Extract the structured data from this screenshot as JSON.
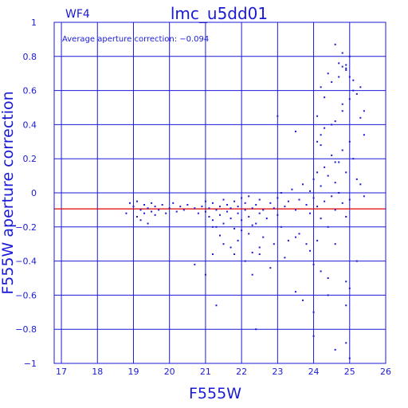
{
  "chart_data": {
    "type": "scatter",
    "title": "lmc_u5dd01",
    "panel_label": "WF4",
    "annotation": "Average aperture correction: −0.094",
    "xlabel": "F555W",
    "ylabel": "F555W aperture correction",
    "xlim": [
      16.8,
      26.0
    ],
    "ylim": [
      -1.0,
      1.0
    ],
    "xticks": [
      17,
      18,
      19,
      20,
      21,
      22,
      23,
      24,
      25,
      26
    ],
    "yticks": [
      -1,
      -0.8,
      -0.6,
      -0.4,
      -0.2,
      0,
      0.2,
      0.4,
      0.6,
      0.8,
      1
    ],
    "ytick_labels": [
      "−1",
      "−0.8",
      "−0.6",
      "−0.4",
      "−0.2",
      "0",
      "0.2",
      "0.4",
      "0.6",
      "0.8",
      "1"
    ],
    "grid": true,
    "reference_line": {
      "y": -0.094,
      "color": "#dd0000"
    },
    "point_color": "#1a1ad6",
    "axis_color": "#1a1ad6",
    "x": [
      18.8,
      18.9,
      19.0,
      19.1,
      19.1,
      19.2,
      19.2,
      19.3,
      19.3,
      19.4,
      19.4,
      19.5,
      19.5,
      19.6,
      19.6,
      19.7,
      19.8,
      19.9,
      20.0,
      20.1,
      20.2,
      20.3,
      20.4,
      20.5,
      20.7,
      20.8,
      20.9,
      21.0,
      21.0,
      21.1,
      21.1,
      21.2,
      21.2,
      21.3,
      21.3,
      21.4,
      21.4,
      21.5,
      21.5,
      21.6,
      21.6,
      21.7,
      21.7,
      21.8,
      21.8,
      21.9,
      21.9,
      22.0,
      22.0,
      22.1,
      22.1,
      22.2,
      22.2,
      22.3,
      22.3,
      22.4,
      22.5,
      22.5,
      22.6,
      22.7,
      22.8,
      22.9,
      23.0,
      23.0,
      23.1,
      23.2,
      23.3,
      23.4,
      23.5,
      23.6,
      23.7,
      23.8,
      23.9,
      23.9,
      24.0,
      24.0,
      24.1,
      24.1,
      24.2,
      24.2,
      24.3,
      24.3,
      24.4,
      24.4,
      24.5,
      24.5,
      24.6,
      24.6,
      24.7,
      24.7,
      24.8,
      24.8,
      24.9,
      24.9,
      25.0,
      25.0,
      25.1,
      25.2,
      25.3,
      25.4,
      21.4,
      21.7,
      21.9,
      22.0,
      22.3,
      22.4,
      22.6,
      22.9,
      23.1,
      23.3,
      23.6,
      23.8,
      21.2,
      21.5,
      21.8,
      22.1,
      22.2,
      22.5,
      22.8,
      23.2,
      23.5,
      23.9,
      24.0,
      24.1,
      24.2,
      24.4,
      24.6,
      24.9,
      22.3,
      22.5,
      23.5,
      24.0,
      24.4,
      24.9,
      25.0,
      25.2,
      24.1,
      24.3,
      24.6,
      24.8,
      25.0,
      24.2,
      24.5,
      24.8,
      25.1,
      25.3,
      24.1,
      24.3,
      24.7,
      24.9,
      25.2,
      25.4,
      24.2,
      24.5,
      24.8,
      25.0,
      24.4,
      24.7,
      24.9,
      25.1,
      24.6,
      24.8,
      24.9,
      25.0,
      21.0,
      21.2,
      20.7,
      21.3,
      22.4,
      23.7,
      24.0,
      24.6,
      24.9,
      25.0,
      23.0,
      23.5,
      24.2,
      24.6,
      25.3,
      25.4
    ],
    "y": [
      -0.12,
      -0.06,
      -0.08,
      -0.14,
      -0.05,
      -0.1,
      -0.16,
      -0.07,
      -0.12,
      -0.09,
      -0.18,
      -0.06,
      -0.11,
      -0.13,
      -0.08,
      -0.1,
      -0.07,
      -0.12,
      -0.09,
      -0.06,
      -0.11,
      -0.08,
      -0.1,
      -0.07,
      -0.09,
      -0.12,
      -0.08,
      -0.11,
      -0.05,
      -0.14,
      -0.09,
      -0.06,
      -0.16,
      -0.1,
      -0.2,
      -0.08,
      -0.13,
      -0.04,
      -0.18,
      -0.11,
      -0.07,
      -0.15,
      -0.09,
      -0.05,
      -0.21,
      -0.12,
      -0.08,
      -0.03,
      -0.16,
      -0.1,
      -0.06,
      -0.14,
      -0.02,
      -0.19,
      -0.09,
      -0.07,
      -0.12,
      -0.04,
      -0.1,
      -0.15,
      -0.06,
      -0.09,
      -0.03,
      -0.13,
      0.0,
      -0.08,
      -0.05,
      0.02,
      -0.1,
      -0.04,
      0.05,
      -0.07,
      0.01,
      -0.12,
      0.08,
      -0.03,
      0.12,
      -0.08,
      0.04,
      -0.15,
      0.15,
      -0.05,
      0.1,
      -0.2,
      0.22,
      -0.02,
      0.06,
      -0.1,
      0.18,
      0.0,
      0.25,
      -0.06,
      0.12,
      -0.14,
      0.3,
      -0.04,
      0.2,
      0.08,
      0.05,
      -0.02,
      -0.25,
      -0.32,
      -0.28,
      -0.22,
      -0.35,
      -0.18,
      -0.26,
      -0.3,
      -0.2,
      -0.28,
      -0.24,
      -0.3,
      -0.2,
      -0.3,
      -0.36,
      -0.4,
      -0.24,
      -0.32,
      -0.44,
      -0.38,
      -0.26,
      -0.34,
      -0.42,
      -0.28,
      -0.46,
      -0.5,
      -0.3,
      -0.52,
      -0.48,
      -0.36,
      -0.58,
      -0.7,
      -0.6,
      -0.66,
      -0.56,
      -0.4,
      0.3,
      0.38,
      0.42,
      0.48,
      0.55,
      0.34,
      0.4,
      0.52,
      0.6,
      0.62,
      0.45,
      0.56,
      0.68,
      0.72,
      0.58,
      0.48,
      0.62,
      0.65,
      0.74,
      0.8,
      0.7,
      0.76,
      0.73,
      0.66,
      0.87,
      0.82,
      0.75,
      0.68,
      -0.48,
      -0.36,
      -0.42,
      -0.66,
      -0.8,
      -0.63,
      -0.84,
      -0.92,
      -0.88,
      -0.97,
      0.45,
      0.36,
      0.28,
      0.18,
      0.44,
      0.34
    ]
  }
}
